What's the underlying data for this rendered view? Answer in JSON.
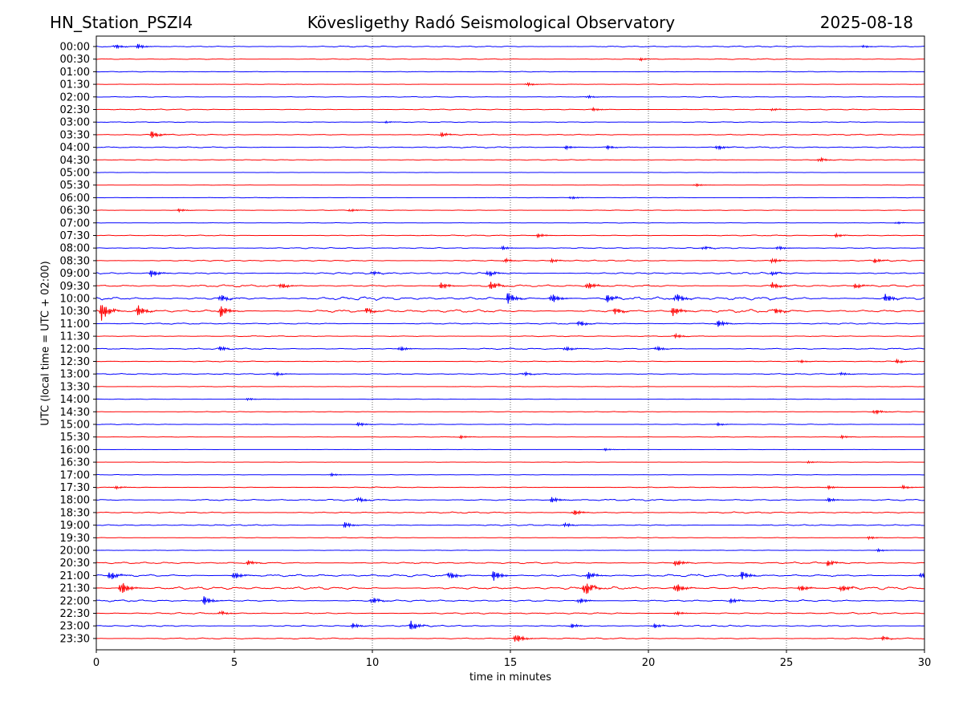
{
  "header": {
    "station": "HN_Station_PSZI4",
    "observatory": "Kövesligethy Radó Seismological Observatory",
    "date": "2025-08-18"
  },
  "chart_data": {
    "type": "line",
    "xlabel": "time in minutes",
    "ylabel": "UTC (local time = UTC + 02:00)",
    "xlim": [
      0,
      30
    ],
    "xticks": [
      0,
      5,
      10,
      15,
      20,
      25,
      30
    ],
    "xtick_labels": [
      "0",
      "5",
      "10",
      "15",
      "20",
      "25",
      "30"
    ],
    "vertical_grid": "dotted at 5, 10, 15, 20, 25",
    "series_colors": {
      "full_hour": "#0000ff",
      "half_hour": "#ff0000"
    },
    "rows": [
      {
        "label": "00:00",
        "activity": 0.8,
        "events": [
          {
            "t": 0.7,
            "a": 0.45
          },
          {
            "t": 1.5,
            "a": 0.5
          },
          {
            "t": 27.8,
            "a": 0.25
          }
        ]
      },
      {
        "label": "00:30",
        "activity": 0.6,
        "events": [
          {
            "t": 19.7,
            "a": 0.3
          }
        ]
      },
      {
        "label": "01:00",
        "activity": 0.4,
        "events": []
      },
      {
        "label": "01:30",
        "activity": 0.3,
        "events": [
          {
            "t": 15.6,
            "a": 0.35
          }
        ]
      },
      {
        "label": "02:00",
        "activity": 0.5,
        "events": [
          {
            "t": 17.8,
            "a": 0.3
          }
        ]
      },
      {
        "label": "02:30",
        "activity": 0.6,
        "events": [
          {
            "t": 18.0,
            "a": 0.3
          },
          {
            "t": 24.5,
            "a": 0.25
          }
        ]
      },
      {
        "label": "03:00",
        "activity": 0.5,
        "events": [
          {
            "t": 10.5,
            "a": 0.2
          }
        ]
      },
      {
        "label": "03:30",
        "activity": 0.7,
        "events": [
          {
            "t": 2.0,
            "a": 0.8
          },
          {
            "t": 12.5,
            "a": 0.45
          }
        ]
      },
      {
        "label": "04:00",
        "activity": 0.8,
        "events": [
          {
            "t": 17.0,
            "a": 0.4
          },
          {
            "t": 18.5,
            "a": 0.4
          },
          {
            "t": 22.5,
            "a": 0.5
          }
        ]
      },
      {
        "label": "04:30",
        "activity": 0.5,
        "events": [
          {
            "t": 26.2,
            "a": 0.45
          }
        ]
      },
      {
        "label": "05:00",
        "activity": 0.2,
        "events": []
      },
      {
        "label": "05:30",
        "activity": 0.2,
        "events": [
          {
            "t": 21.7,
            "a": 0.3
          }
        ]
      },
      {
        "label": "06:00",
        "activity": 0.3,
        "events": [
          {
            "t": 17.2,
            "a": 0.3
          }
        ]
      },
      {
        "label": "06:30",
        "activity": 0.4,
        "events": [
          {
            "t": 3.0,
            "a": 0.3
          },
          {
            "t": 9.2,
            "a": 0.3
          }
        ]
      },
      {
        "label": "07:00",
        "activity": 0.3,
        "events": [
          {
            "t": 29.0,
            "a": 0.25
          }
        ]
      },
      {
        "label": "07:30",
        "activity": 0.6,
        "events": [
          {
            "t": 16.0,
            "a": 0.4
          },
          {
            "t": 26.8,
            "a": 0.35
          }
        ]
      },
      {
        "label": "08:00",
        "activity": 0.8,
        "events": [
          {
            "t": 14.7,
            "a": 0.4
          },
          {
            "t": 22.0,
            "a": 0.35
          },
          {
            "t": 24.7,
            "a": 0.4
          }
        ]
      },
      {
        "label": "08:30",
        "activity": 0.8,
        "events": [
          {
            "t": 14.8,
            "a": 0.4
          },
          {
            "t": 16.5,
            "a": 0.35
          },
          {
            "t": 24.5,
            "a": 0.5
          },
          {
            "t": 28.2,
            "a": 0.45
          }
        ]
      },
      {
        "label": "09:00",
        "activity": 1.2,
        "events": [
          {
            "t": 2.0,
            "a": 0.8
          },
          {
            "t": 10.0,
            "a": 0.4
          },
          {
            "t": 14.2,
            "a": 0.7
          },
          {
            "t": 24.5,
            "a": 0.4
          }
        ]
      },
      {
        "label": "09:30",
        "activity": 1.4,
        "events": [
          {
            "t": 6.7,
            "a": 0.6
          },
          {
            "t": 12.5,
            "a": 0.7
          },
          {
            "t": 14.3,
            "a": 0.9
          },
          {
            "t": 17.8,
            "a": 0.8
          },
          {
            "t": 24.5,
            "a": 0.7
          },
          {
            "t": 27.5,
            "a": 0.5
          }
        ]
      },
      {
        "label": "10:00",
        "activity": 2.2,
        "events": [
          {
            "t": 4.5,
            "a": 0.8
          },
          {
            "t": 14.9,
            "a": 1.3
          },
          {
            "t": 16.5,
            "a": 1.1
          },
          {
            "t": 18.5,
            "a": 0.9
          },
          {
            "t": 21.0,
            "a": 1.0
          },
          {
            "t": 28.6,
            "a": 0.9
          }
        ]
      },
      {
        "label": "10:30",
        "activity": 2.0,
        "events": [
          {
            "t": 0.2,
            "a": 2.0
          },
          {
            "t": 1.5,
            "a": 1.2
          },
          {
            "t": 4.5,
            "a": 1.3
          },
          {
            "t": 9.8,
            "a": 0.6
          },
          {
            "t": 18.8,
            "a": 0.7
          },
          {
            "t": 20.9,
            "a": 1.0
          },
          {
            "t": 24.6,
            "a": 0.6
          }
        ]
      },
      {
        "label": "11:00",
        "activity": 0.9,
        "events": [
          {
            "t": 17.5,
            "a": 0.6
          },
          {
            "t": 22.5,
            "a": 0.8
          }
        ]
      },
      {
        "label": "11:30",
        "activity": 0.6,
        "events": [
          {
            "t": 21.0,
            "a": 0.4
          }
        ]
      },
      {
        "label": "12:00",
        "activity": 0.9,
        "events": [
          {
            "t": 4.5,
            "a": 0.5
          },
          {
            "t": 11.0,
            "a": 0.5
          },
          {
            "t": 17.0,
            "a": 0.5
          },
          {
            "t": 20.3,
            "a": 0.5
          }
        ]
      },
      {
        "label": "12:30",
        "activity": 0.6,
        "events": [
          {
            "t": 25.5,
            "a": 0.3
          },
          {
            "t": 29.0,
            "a": 0.4
          }
        ]
      },
      {
        "label": "13:00",
        "activity": 0.7,
        "events": [
          {
            "t": 6.5,
            "a": 0.4
          },
          {
            "t": 15.5,
            "a": 0.4
          },
          {
            "t": 27.0,
            "a": 0.3
          }
        ]
      },
      {
        "label": "13:30",
        "activity": 0.3,
        "events": []
      },
      {
        "label": "14:00",
        "activity": 0.3,
        "events": [
          {
            "t": 5.5,
            "a": 0.25
          }
        ]
      },
      {
        "label": "14:30",
        "activity": 0.4,
        "events": [
          {
            "t": 28.2,
            "a": 0.5
          }
        ]
      },
      {
        "label": "15:00",
        "activity": 0.4,
        "events": [
          {
            "t": 9.5,
            "a": 0.4
          },
          {
            "t": 22.5,
            "a": 0.3
          }
        ]
      },
      {
        "label": "15:30",
        "activity": 0.3,
        "events": [
          {
            "t": 13.2,
            "a": 0.3
          },
          {
            "t": 27.0,
            "a": 0.3
          }
        ]
      },
      {
        "label": "16:00",
        "activity": 0.2,
        "events": [
          {
            "t": 18.4,
            "a": 0.25
          }
        ]
      },
      {
        "label": "16:30",
        "activity": 0.2,
        "events": [
          {
            "t": 25.8,
            "a": 0.2
          }
        ]
      },
      {
        "label": "17:00",
        "activity": 0.3,
        "events": [
          {
            "t": 8.5,
            "a": 0.3
          }
        ]
      },
      {
        "label": "17:30",
        "activity": 0.5,
        "events": [
          {
            "t": 0.7,
            "a": 0.3
          },
          {
            "t": 26.5,
            "a": 0.35
          },
          {
            "t": 29.2,
            "a": 0.4
          }
        ]
      },
      {
        "label": "18:00",
        "activity": 1.1,
        "events": [
          {
            "t": 9.5,
            "a": 0.5
          },
          {
            "t": 16.5,
            "a": 0.6
          },
          {
            "t": 26.5,
            "a": 0.5
          }
        ]
      },
      {
        "label": "18:30",
        "activity": 0.9,
        "events": [
          {
            "t": 17.3,
            "a": 0.6
          }
        ]
      },
      {
        "label": "19:00",
        "activity": 0.8,
        "events": [
          {
            "t": 9.0,
            "a": 0.6
          },
          {
            "t": 17.0,
            "a": 0.4
          }
        ]
      },
      {
        "label": "19:30",
        "activity": 0.4,
        "events": [
          {
            "t": 28.0,
            "a": 0.3
          }
        ]
      },
      {
        "label": "20:00",
        "activity": 0.3,
        "events": [
          {
            "t": 28.3,
            "a": 0.3
          }
        ]
      },
      {
        "label": "20:30",
        "activity": 1.1,
        "events": [
          {
            "t": 5.5,
            "a": 0.5
          },
          {
            "t": 21.0,
            "a": 0.7
          },
          {
            "t": 26.5,
            "a": 0.6
          }
        ]
      },
      {
        "label": "21:00",
        "activity": 1.7,
        "events": [
          {
            "t": 0.5,
            "a": 1.0
          },
          {
            "t": 5.0,
            "a": 0.8
          },
          {
            "t": 12.8,
            "a": 0.8
          },
          {
            "t": 14.4,
            "a": 1.1
          },
          {
            "t": 17.8,
            "a": 0.9
          },
          {
            "t": 23.4,
            "a": 0.9
          },
          {
            "t": 29.9,
            "a": 0.7
          }
        ]
      },
      {
        "label": "21:30",
        "activity": 1.9,
        "events": [
          {
            "t": 0.9,
            "a": 1.5
          },
          {
            "t": 17.7,
            "a": 1.6
          },
          {
            "t": 21.0,
            "a": 1.1
          },
          {
            "t": 25.5,
            "a": 0.7
          },
          {
            "t": 27.0,
            "a": 0.8
          }
        ]
      },
      {
        "label": "22:00",
        "activity": 1.2,
        "events": [
          {
            "t": 3.9,
            "a": 1.0
          },
          {
            "t": 10.0,
            "a": 0.7
          },
          {
            "t": 17.5,
            "a": 0.6
          },
          {
            "t": 23.0,
            "a": 0.5
          }
        ]
      },
      {
        "label": "22:30",
        "activity": 1.0,
        "events": [
          {
            "t": 4.5,
            "a": 0.4
          },
          {
            "t": 21.0,
            "a": 0.4
          }
        ]
      },
      {
        "label": "23:00",
        "activity": 1.0,
        "events": [
          {
            "t": 9.3,
            "a": 0.5
          },
          {
            "t": 11.4,
            "a": 1.0
          },
          {
            "t": 17.2,
            "a": 0.5
          },
          {
            "t": 20.2,
            "a": 0.5
          }
        ]
      },
      {
        "label": "23:30",
        "activity": 0.9,
        "events": [
          {
            "t": 15.2,
            "a": 1.0
          },
          {
            "t": 28.5,
            "a": 0.4
          }
        ]
      }
    ]
  }
}
